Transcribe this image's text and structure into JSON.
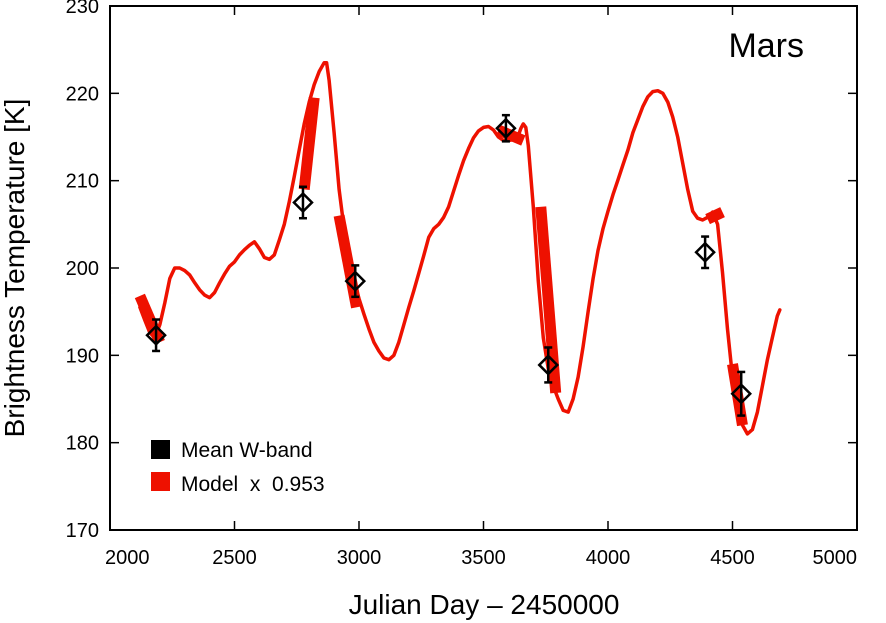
{
  "chart_data": {
    "type": "line",
    "title": "Mars",
    "xlabel": "Julian Day – 2450000",
    "ylabel": "Brightness Temperature [K]",
    "xlim": [
      2000,
      5000
    ],
    "ylim": [
      170,
      230
    ],
    "xticks": [
      2000,
      2500,
      3000,
      3500,
      4000,
      4500,
      5000
    ],
    "yticks": [
      170,
      180,
      190,
      200,
      210,
      220,
      230
    ],
    "grid": false,
    "legend_position": "bottom-left",
    "legend": [
      {
        "label": "Mean W-band",
        "color": "#000000"
      },
      {
        "label": "Model  x  0.953",
        "color": "#ee1100"
      }
    ],
    "series": [
      {
        "name": "Model  x  0.953",
        "color": "#ee1100",
        "x": [
          2120,
          2140,
          2160,
          2180,
          2200,
          2220,
          2240,
          2260,
          2280,
          2300,
          2320,
          2340,
          2360,
          2380,
          2400,
          2420,
          2440,
          2460,
          2480,
          2500,
          2520,
          2540,
          2560,
          2580,
          2600,
          2620,
          2640,
          2660,
          2680,
          2700,
          2720,
          2740,
          2760,
          2780,
          2800,
          2820,
          2840,
          2860,
          2870,
          2880,
          2900,
          2920,
          2940,
          2960,
          2980,
          3000,
          3020,
          3040,
          3060,
          3080,
          3100,
          3120,
          3140,
          3160,
          3180,
          3200,
          3220,
          3240,
          3260,
          3280,
          3300,
          3320,
          3340,
          3360,
          3380,
          3400,
          3420,
          3440,
          3460,
          3480,
          3500,
          3520,
          3540,
          3560,
          3580,
          3600,
          3620,
          3640,
          3650,
          3660,
          3670,
          3680,
          3700,
          3720,
          3740,
          3760,
          3780,
          3800,
          3820,
          3840,
          3860,
          3880,
          3900,
          3920,
          3940,
          3960,
          3980,
          4000,
          4020,
          4040,
          4060,
          4080,
          4100,
          4120,
          4140,
          4160,
          4180,
          4200,
          4220,
          4240,
          4260,
          4280,
          4300,
          4320,
          4340,
          4360,
          4380,
          4400,
          4420,
          4440,
          4460,
          4480,
          4500,
          4520,
          4540,
          4560,
          4580,
          4600,
          4620,
          4640,
          4660,
          4680,
          4690
        ],
        "y": [
          195.5,
          194.0,
          192.6,
          192.0,
          193.5,
          196.0,
          198.8,
          200.0,
          200.0,
          199.7,
          199.2,
          198.3,
          197.5,
          196.9,
          196.6,
          197.2,
          198.3,
          199.3,
          200.2,
          200.7,
          201.5,
          202.1,
          202.6,
          203.0,
          202.2,
          201.2,
          201.0,
          201.5,
          203.2,
          205.0,
          207.6,
          210.5,
          213.5,
          216.5,
          219.0,
          221.0,
          222.5,
          223.5,
          223.5,
          221.5,
          215.5,
          209.0,
          204.5,
          201.0,
          198.5,
          196.5,
          194.7,
          193.0,
          191.5,
          190.5,
          189.7,
          189.5,
          190.0,
          191.5,
          193.5,
          195.5,
          197.4,
          199.4,
          201.4,
          203.5,
          204.5,
          205.0,
          205.8,
          207.0,
          208.8,
          210.6,
          212.3,
          213.7,
          214.9,
          215.7,
          216.1,
          216.2,
          215.8,
          215.0,
          214.6,
          214.6,
          214.7,
          215.2,
          216.0,
          216.5,
          216.1,
          214.0,
          207.0,
          198.5,
          192.0,
          188.5,
          186.5,
          185.0,
          183.7,
          183.5,
          185.0,
          187.5,
          191.0,
          195.0,
          198.8,
          202.0,
          204.5,
          206.5,
          208.4,
          210.1,
          211.8,
          213.5,
          215.5,
          217.0,
          218.5,
          219.6,
          220.2,
          220.3,
          220.0,
          219.0,
          217.3,
          215.0,
          212.0,
          209.0,
          206.5,
          205.7,
          205.5,
          205.8,
          206.4,
          205.0,
          199.5,
          193.0,
          187.5,
          184.5,
          182.0,
          181.0,
          181.5,
          183.5,
          186.5,
          189.5,
          192.0,
          194.5,
          195.2
        ]
      },
      {
        "name": "Mean W-band",
        "color": "#000000",
        "x": [
          2185,
          2775,
          2985,
          3590,
          3760,
          4390,
          4535
        ],
        "y": [
          192.3,
          207.5,
          198.5,
          216.0,
          188.9,
          201.8,
          185.6
        ],
        "error": [
          1.8,
          1.8,
          1.8,
          1.5,
          2.0,
          1.8,
          2.5
        ]
      }
    ],
    "model_bands": [
      {
        "x": [
          2120,
          2200
        ],
        "y_start": 196.8,
        "y_end": 191.5
      },
      {
        "x": [
          2780,
          2820
        ],
        "y_start": 209.0,
        "y_end": 219.5
      },
      {
        "x": [
          2920,
          2990
        ],
        "y_start": 206.0,
        "y_end": 195.5
      },
      {
        "x": [
          3560,
          3660
        ],
        "y_start": 215.8,
        "y_end": 214.6
      },
      {
        "x": [
          3730,
          3790
        ],
        "y_start": 207.0,
        "y_end": 185.7
      },
      {
        "x": [
          4400,
          4460
        ],
        "y_start": 205.6,
        "y_end": 206.4
      },
      {
        "x": [
          4500,
          4540
        ],
        "y_start": 189.0,
        "y_end": 182.0
      }
    ]
  }
}
